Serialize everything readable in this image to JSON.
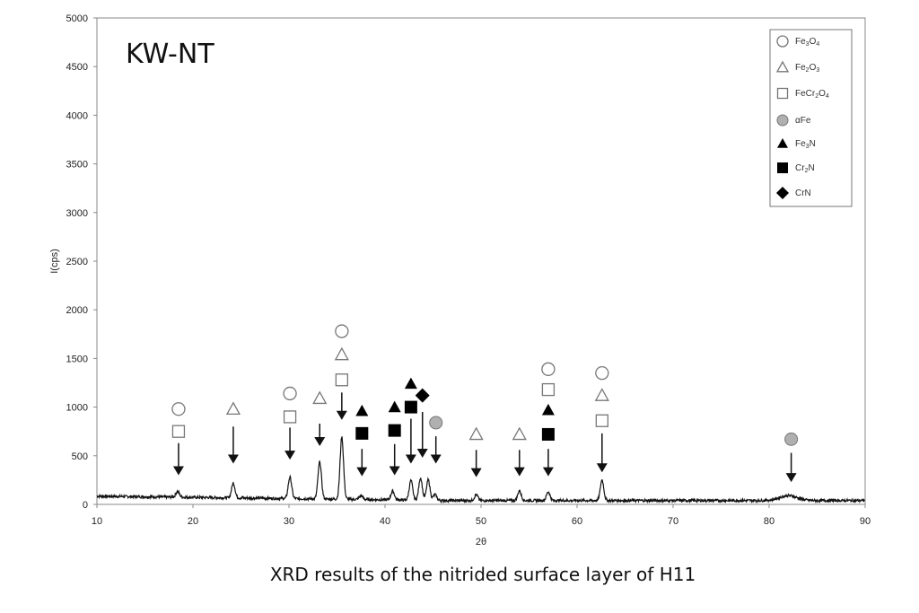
{
  "chart_data": {
    "type": "line",
    "title": "KW-NT",
    "caption": "XRD results of the nitrided surface layer of H11",
    "xlabel": "2θ",
    "ylabel": "I(cps)",
    "xlim": [
      10,
      90
    ],
    "ylim": [
      0,
      5000
    ],
    "xticks": [
      "10",
      "20",
      "30",
      "40",
      "50",
      "60",
      "70",
      "80",
      "90"
    ],
    "yticks": [
      "0",
      "500",
      "1000",
      "1500",
      "2000",
      "2500",
      "3000",
      "3500",
      "4000",
      "4500",
      "5000"
    ],
    "grid": false,
    "legend_position": "top-right",
    "legend": [
      {
        "symbol": "open-circle",
        "label": "Fe3O4",
        "base": "Fe",
        "sub1": "3",
        "mid": "O",
        "sub2": "4"
      },
      {
        "symbol": "open-triangle",
        "label": "Fe2O3",
        "base": "Fe",
        "sub1": "2",
        "mid": "O",
        "sub2": "3"
      },
      {
        "symbol": "open-square",
        "label": "FeCr2O4",
        "base": "FeCr",
        "sub1": "2",
        "mid": "O",
        "sub2": "4"
      },
      {
        "symbol": "grey-circle",
        "label": "αFe",
        "base": "αFe",
        "sub1": "",
        "mid": "",
        "sub2": ""
      },
      {
        "symbol": "filled-triangle",
        "label": "Fe3N",
        "base": "Fe",
        "sub1": "3",
        "mid": "N",
        "sub2": ""
      },
      {
        "symbol": "filled-square",
        "label": "Cr2N",
        "base": "Cr",
        "sub1": "2",
        "mid": "N",
        "sub2": ""
      },
      {
        "symbol": "filled-diamond",
        "label": "CrN",
        "base": "CrN",
        "sub1": "",
        "mid": "",
        "sub2": ""
      }
    ],
    "baseline": {
      "start": 85,
      "end": 40
    },
    "peaks": [
      {
        "x": 18.4,
        "y": 60
      },
      {
        "x": 24.2,
        "y": 150
      },
      {
        "x": 30.1,
        "y": 220
      },
      {
        "x": 33.2,
        "y": 380
      },
      {
        "x": 35.5,
        "y": 640
      },
      {
        "x": 37.5,
        "y": 40
      },
      {
        "x": 40.8,
        "y": 90
      },
      {
        "x": 42.7,
        "y": 200
      },
      {
        "x": 43.7,
        "y": 230
      },
      {
        "x": 44.5,
        "y": 210
      },
      {
        "x": 45.2,
        "y": 60
      },
      {
        "x": 49.5,
        "y": 60
      },
      {
        "x": 54.0,
        "y": 100
      },
      {
        "x": 57.0,
        "y": 90
      },
      {
        "x": 62.6,
        "y": 210
      },
      {
        "x": 82.0,
        "y": 50
      }
    ],
    "annotations": [
      {
        "x": 18.5,
        "markers": [
          {
            "s": "open-circle",
            "y": 980
          },
          {
            "s": "open-square",
            "y": 750
          }
        ],
        "arrow": [
          630,
          300
        ]
      },
      {
        "x": 24.2,
        "markers": [
          {
            "s": "open-triangle",
            "y": 980
          }
        ],
        "arrow": [
          800,
          420
        ]
      },
      {
        "x": 30.1,
        "markers": [
          {
            "s": "open-circle",
            "y": 1140
          },
          {
            "s": "open-square",
            "y": 900
          }
        ],
        "arrow": [
          790,
          460
        ]
      },
      {
        "x": 33.2,
        "markers": [
          {
            "s": "open-triangle",
            "y": 1090
          }
        ],
        "arrow": [
          830,
          600
        ]
      },
      {
        "x": 35.5,
        "markers": [
          {
            "s": "open-circle",
            "y": 1780
          },
          {
            "s": "open-triangle",
            "y": 1540
          },
          {
            "s": "open-square",
            "y": 1280
          }
        ],
        "arrow": [
          1150,
          870
        ]
      },
      {
        "x": 37.6,
        "markers": [
          {
            "s": "filled-triangle",
            "y": 960
          },
          {
            "s": "filled-square",
            "y": 730
          }
        ],
        "arrow": [
          570,
          290
        ]
      },
      {
        "x": 41.0,
        "markers": [
          {
            "s": "filled-triangle",
            "y": 1000
          },
          {
            "s": "filled-square",
            "y": 760
          }
        ],
        "arrow": [
          620,
          300
        ]
      },
      {
        "x": 42.7,
        "markers": [
          {
            "s": "filled-triangle",
            "y": 1240
          },
          {
            "s": "filled-square",
            "y": 1000
          }
        ],
        "arrow": [
          880,
          420
        ]
      },
      {
        "x": 43.9,
        "markers": [
          {
            "s": "filled-diamond",
            "y": 1120
          }
        ],
        "arrow": [
          950,
          480
        ]
      },
      {
        "x": 45.3,
        "markers": [
          {
            "s": "grey-circle",
            "y": 840
          }
        ],
        "arrow": [
          700,
          420
        ]
      },
      {
        "x": 49.5,
        "markers": [
          {
            "s": "open-triangle",
            "y": 720
          }
        ],
        "arrow": [
          560,
          280
        ]
      },
      {
        "x": 54.0,
        "markers": [
          {
            "s": "open-triangle",
            "y": 720
          }
        ],
        "arrow": [
          560,
          290
        ]
      },
      {
        "x": 57.0,
        "markers": [
          {
            "s": "open-circle",
            "y": 1390
          },
          {
            "s": "open-square",
            "y": 1180
          },
          {
            "s": "filled-triangle",
            "y": 970
          },
          {
            "s": "filled-square",
            "y": 720
          }
        ],
        "arrow": [
          570,
          290
        ]
      },
      {
        "x": 62.6,
        "markers": [
          {
            "s": "open-circle",
            "y": 1350
          },
          {
            "s": "open-triangle",
            "y": 1120
          },
          {
            "s": "open-square",
            "y": 860
          }
        ],
        "arrow": [
          730,
          330
        ]
      },
      {
        "x": 82.3,
        "markers": [
          {
            "s": "grey-circle",
            "y": 670
          }
        ],
        "arrow": [
          530,
          230
        ]
      }
    ],
    "colors": {
      "line": "#111111",
      "open": "#777777",
      "filled": "#000000",
      "grey": "#b0b0b0"
    }
  }
}
